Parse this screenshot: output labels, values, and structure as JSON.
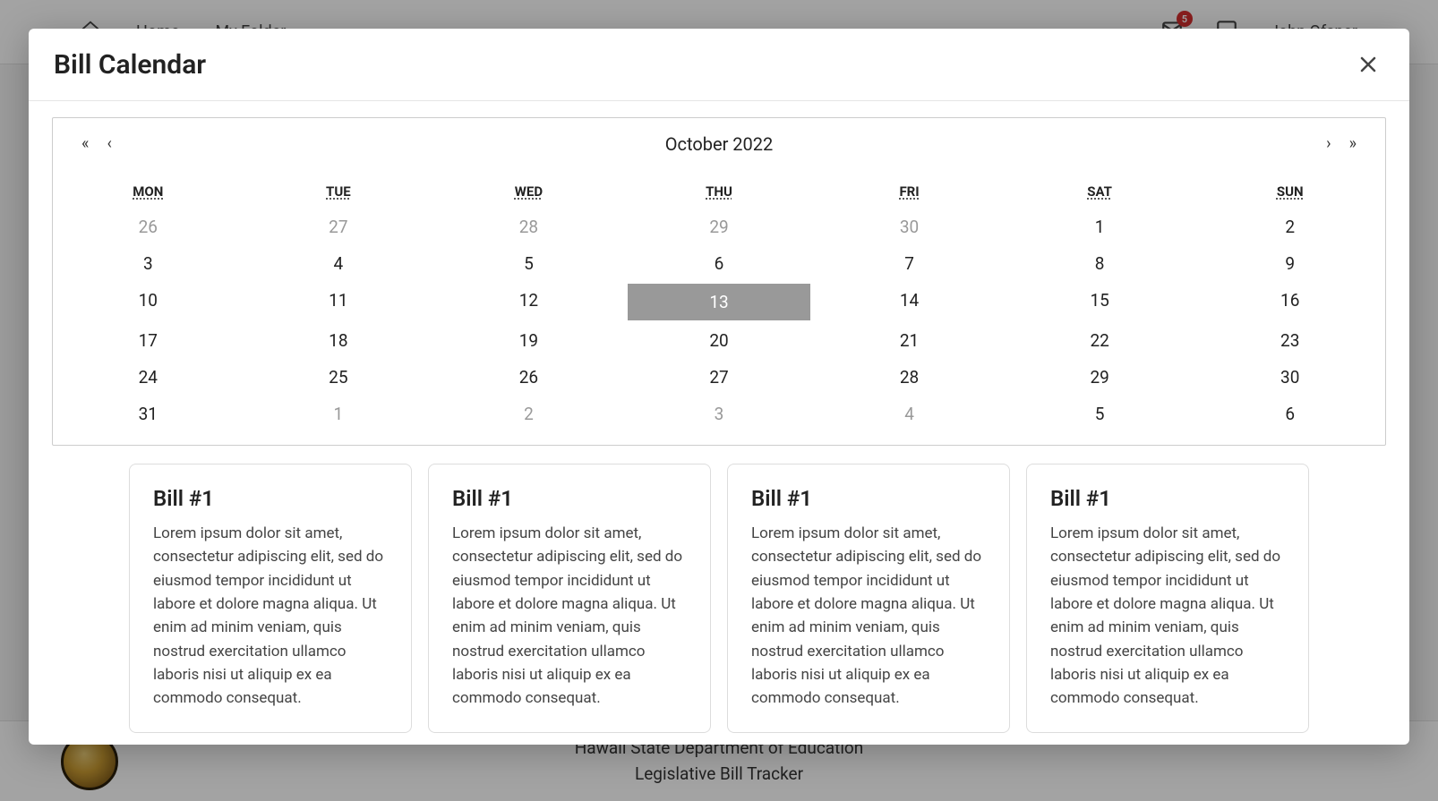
{
  "header": {
    "home_label": "Home",
    "folder_label": "My Folder",
    "notification_count": "5",
    "user_label": "John Ofsner"
  },
  "modal": {
    "title": "Bill Calendar"
  },
  "calendar": {
    "month_label": "October 2022",
    "nav": {
      "prev_year": "«",
      "prev_month": "‹",
      "next_month": "›",
      "next_year": "»"
    },
    "day_headers": [
      "MON",
      "TUE",
      "WED",
      "THU",
      "FRI",
      "SAT",
      "SUN"
    ],
    "weeks": [
      [
        {
          "d": "26",
          "muted": true
        },
        {
          "d": "27",
          "muted": true
        },
        {
          "d": "28",
          "muted": true
        },
        {
          "d": "29",
          "muted": true
        },
        {
          "d": "30",
          "muted": true
        },
        {
          "d": "1"
        },
        {
          "d": "2"
        }
      ],
      [
        {
          "d": "3"
        },
        {
          "d": "4"
        },
        {
          "d": "5"
        },
        {
          "d": "6"
        },
        {
          "d": "7"
        },
        {
          "d": "8"
        },
        {
          "d": "9"
        }
      ],
      [
        {
          "d": "10"
        },
        {
          "d": "11"
        },
        {
          "d": "12"
        },
        {
          "d": "13",
          "selected": true
        },
        {
          "d": "14"
        },
        {
          "d": "15"
        },
        {
          "d": "16"
        }
      ],
      [
        {
          "d": "17"
        },
        {
          "d": "18"
        },
        {
          "d": "19"
        },
        {
          "d": "20"
        },
        {
          "d": "21"
        },
        {
          "d": "22"
        },
        {
          "d": "23"
        }
      ],
      [
        {
          "d": "24"
        },
        {
          "d": "25"
        },
        {
          "d": "26"
        },
        {
          "d": "27"
        },
        {
          "d": "28"
        },
        {
          "d": "29"
        },
        {
          "d": "30"
        }
      ],
      [
        {
          "d": "31"
        },
        {
          "d": "1",
          "muted": true
        },
        {
          "d": "2",
          "muted": true
        },
        {
          "d": "3",
          "muted": true
        },
        {
          "d": "4",
          "muted": true
        },
        {
          "d": "5"
        },
        {
          "d": "6"
        }
      ]
    ]
  },
  "bills": [
    {
      "title": "Bill #1",
      "desc": "Lorem ipsum dolor sit amet, consectetur adipiscing elit, sed do eiusmod tempor incididunt ut labore et dolore magna aliqua. Ut enim ad minim veniam, quis nostrud exercitation ullamco laboris nisi ut aliquip ex ea commodo consequat."
    },
    {
      "title": "Bill #1",
      "desc": "Lorem ipsum dolor sit amet, consectetur adipiscing elit, sed do eiusmod tempor incididunt ut labore et dolore magna aliqua. Ut enim ad minim veniam, quis nostrud exercitation ullamco laboris nisi ut aliquip ex ea commodo consequat."
    },
    {
      "title": "Bill #1",
      "desc": "Lorem ipsum dolor sit amet, consectetur adipiscing elit, sed do eiusmod tempor incididunt ut labore et dolore magna aliqua. Ut enim ad minim veniam, quis nostrud exercitation ullamco laboris nisi ut aliquip ex ea commodo consequat."
    },
    {
      "title": "Bill #1",
      "desc": "Lorem ipsum dolor sit amet, consectetur adipiscing elit, sed do eiusmod tempor incididunt ut labore et dolore magna aliqua. Ut enim ad minim veniam, quis nostrud exercitation ullamco laboris nisi ut aliquip ex ea commodo consequat."
    }
  ],
  "footer": {
    "line1": "Hawaii State Department of Education",
    "line2": "Legislative Bill Tracker"
  },
  "colors": {
    "selected_bg": "#999999",
    "muted_text": "#999999",
    "border": "#cccccc",
    "card_border": "#dddddd",
    "badge_bg": "#d32f2f"
  }
}
